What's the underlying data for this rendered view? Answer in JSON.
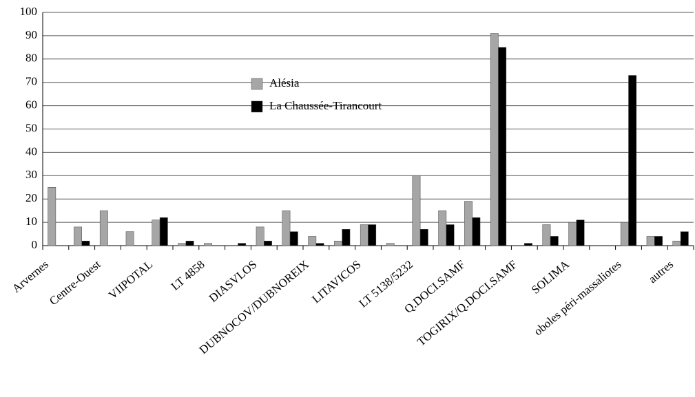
{
  "chart_data": {
    "type": "bar",
    "categories": [
      "Arvernes",
      null,
      "Centre-Ouest",
      null,
      "VIIPOTAL",
      null,
      "LT 4858",
      null,
      "DIASVLOS",
      null,
      "DUBNOCOV/DUBNOREIX",
      null,
      "LITAVICOS",
      null,
      "LT 5138/5232",
      null,
      "Q.DOCI.SAMF",
      null,
      "TOGIRIX/Q.DOCI.SAMF",
      null,
      "SOLIMA",
      null,
      "oboles péri-massaliotes",
      null,
      "autres"
    ],
    "series": [
      {
        "name": "Alésia",
        "color": "#a6a6a6",
        "values": [
          25,
          8,
          15,
          6,
          11,
          1,
          1,
          0,
          8,
          15,
          4,
          2,
          9,
          1,
          30,
          15,
          19,
          91,
          0,
          9,
          10,
          0,
          10,
          4,
          2
        ]
      },
      {
        "name": "La Chaussée-Tirancourt",
        "color": "#000000",
        "values": [
          0,
          2,
          0,
          0,
          12,
          2,
          0,
          1,
          2,
          6,
          1,
          7,
          9,
          0,
          7,
          9,
          12,
          85,
          1,
          4,
          11,
          0,
          73,
          4,
          6
        ]
      }
    ],
    "ylim": [
      0,
      100
    ],
    "yticks": [
      0,
      10,
      20,
      30,
      40,
      50,
      60,
      70,
      80,
      90,
      100
    ],
    "grid": true,
    "legend": "inside-top-center"
  }
}
